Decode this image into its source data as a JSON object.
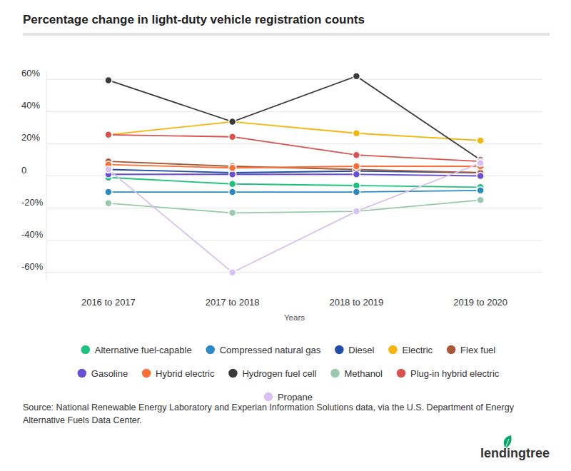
{
  "chart_data": {
    "type": "line",
    "title": "Percentage change in light-duty vehicle registration counts",
    "x_label": "Years",
    "categories": [
      "2016 to 2017",
      "2017 to 2018",
      "2018 to 2019",
      "2019 to 2020"
    ],
    "ylim": [
      -65,
      65
    ],
    "yticks": [
      {
        "value": -60,
        "label": "-60%"
      },
      {
        "value": -40,
        "label": "-40%"
      },
      {
        "value": -20,
        "label": "-20%"
      },
      0,
      {
        "value": 20,
        "label": "20%"
      },
      {
        "value": 40,
        "label": "40%"
      },
      {
        "value": 60,
        "label": "60%"
      }
    ],
    "grid": true,
    "marker": "circle",
    "series": [
      {
        "name": "Alternative fuel-capable",
        "color": "#1dc27c",
        "values": [
          -1,
          -5,
          -6,
          -7
        ]
      },
      {
        "name": "Compressed natural gas",
        "color": "#2b8ac6",
        "values": [
          -10,
          -10,
          -10,
          -9
        ]
      },
      {
        "name": "Diesel",
        "color": "#1f4ea6",
        "values": [
          4,
          2,
          3,
          2
        ]
      },
      {
        "name": "Electric",
        "color": "#f5b50b",
        "values": [
          25.6,
          33.7,
          26.5,
          22
        ]
      },
      {
        "name": "Flex fuel",
        "color": "#a65a38",
        "values": [
          9,
          6,
          4,
          2
        ]
      },
      {
        "name": "Gasoline",
        "color": "#6a4fd4",
        "values": [
          1,
          1,
          1,
          0
        ]
      },
      {
        "name": "Hybrid electric",
        "color": "#ff6d36",
        "values": [
          7,
          5,
          6,
          6
        ]
      },
      {
        "name": "Hydrogen fuel cell",
        "color": "#3b3b3b",
        "values": [
          59.5,
          33.7,
          62,
          10
        ]
      },
      {
        "name": "Methanol",
        "color": "#98c9ad",
        "values": [
          -17,
          -23,
          -22,
          -15
        ]
      },
      {
        "name": "Plug-in hybrid electric",
        "color": "#d9534f",
        "values": [
          25.6,
          24.3,
          13,
          9
        ]
      },
      {
        "name": "Propane",
        "color": "#d8c1f2",
        "values": [
          4,
          -60,
          -22,
          8
        ]
      }
    ],
    "source": "Source: National Renewable Energy Laboratory and Experian Information Solutions data, via the U.S. Department of Energy Alternative Fuels Data Center.",
    "logo": "lendingtree"
  }
}
